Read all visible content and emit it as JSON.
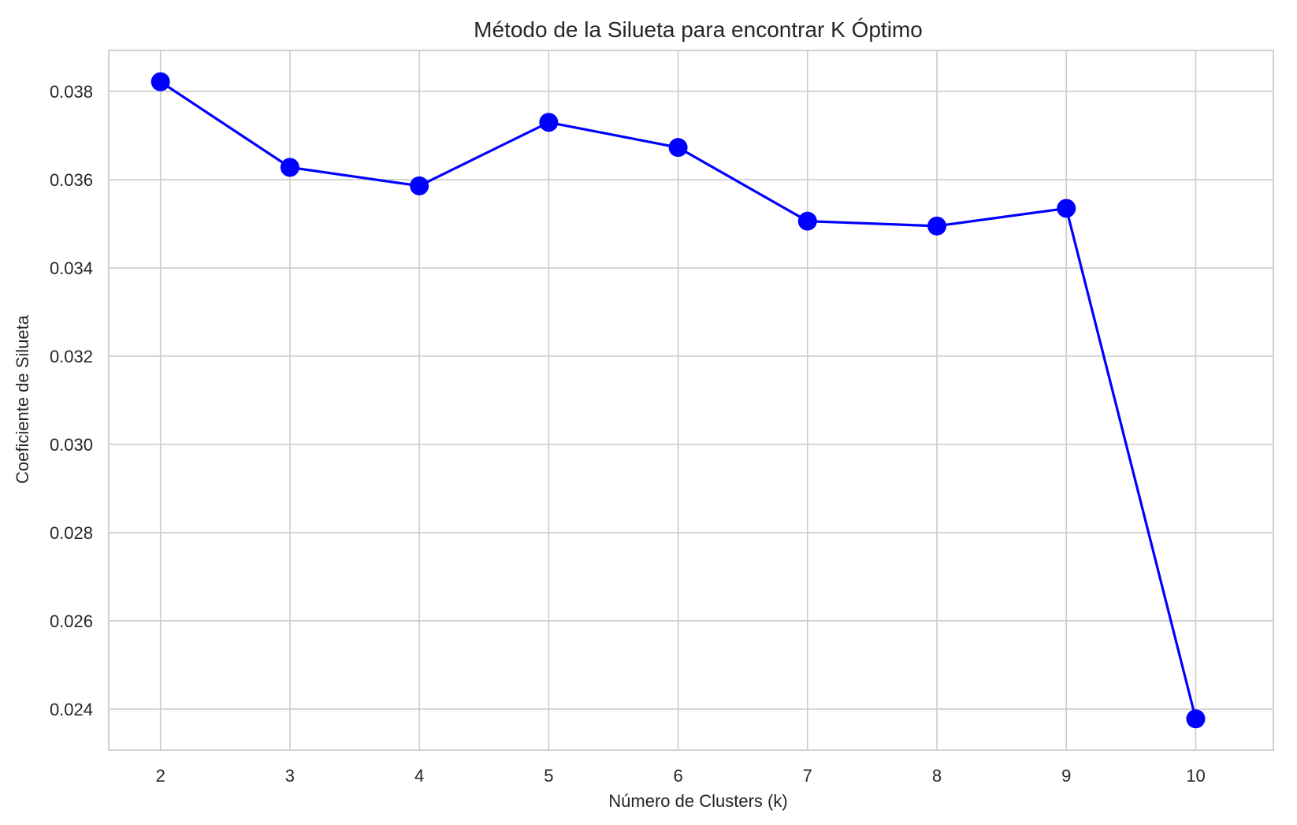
{
  "chart_data": {
    "type": "line",
    "title": "Método de la Silueta para encontrar K Óptimo",
    "xlabel": "Número de Clusters (k)",
    "ylabel": "Coeficiente de Silueta",
    "x": [
      2,
      3,
      4,
      5,
      6,
      7,
      8,
      9,
      10
    ],
    "series": [
      {
        "values": [
          0.03822,
          0.03628,
          0.03586,
          0.0373,
          0.03673,
          0.03506,
          0.03495,
          0.03535,
          0.02378
        ],
        "color": "#0000ff",
        "marker": "circle"
      }
    ],
    "xticks": [
      "2",
      "3",
      "4",
      "5",
      "6",
      "7",
      "8",
      "9",
      "10"
    ],
    "yticks": [
      "0.024",
      "0.026",
      "0.028",
      "0.030",
      "0.032",
      "0.034",
      "0.036",
      "0.038"
    ],
    "ytick_values": [
      0.024,
      0.026,
      0.028,
      0.03,
      0.032,
      0.034,
      0.036,
      0.038
    ],
    "xlim": [
      1.6,
      10.6
    ],
    "ylim": [
      0.02307,
      0.03893
    ],
    "grid": true,
    "colors": {
      "line": "#0000ff",
      "grid": "#cccccc",
      "text": "#262626",
      "background": "#ffffff"
    }
  }
}
